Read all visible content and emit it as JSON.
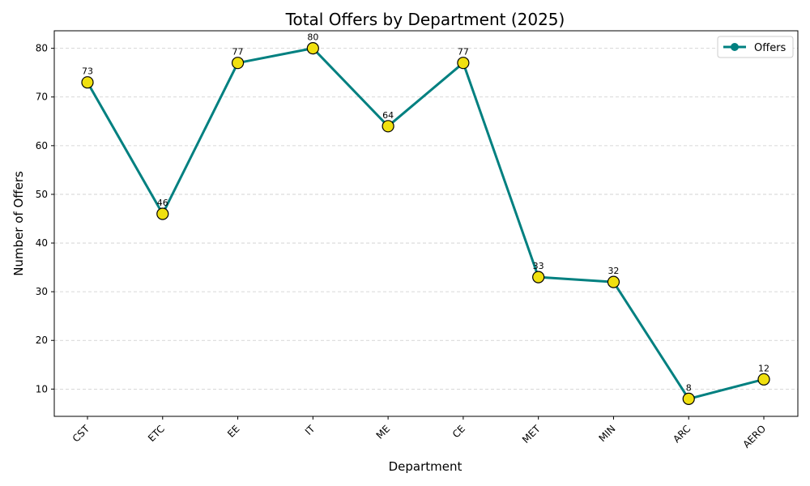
{
  "chart_data": {
    "type": "line",
    "title": "Total Offers by Department (2025)",
    "xlabel": "Department",
    "ylabel": "Number of Offers",
    "categories": [
      "CST",
      "ETC",
      "EE",
      "IT",
      "ME",
      "CE",
      "MET",
      "MIN",
      "ARC",
      "AERO"
    ],
    "series": [
      {
        "name": "Offers",
        "values": [
          73,
          46,
          77,
          80,
          64,
          77,
          33,
          32,
          8,
          12
        ]
      }
    ],
    "ylim": [
      4.4,
      83.6
    ],
    "yticks": [
      10,
      20,
      30,
      40,
      50,
      60,
      70,
      80
    ],
    "grid": true,
    "legend_position": "top-right",
    "colors": {
      "line": "#008080",
      "marker_fill": "#f0e010",
      "marker_edge": "#000000",
      "grid": "#cccccc"
    }
  }
}
